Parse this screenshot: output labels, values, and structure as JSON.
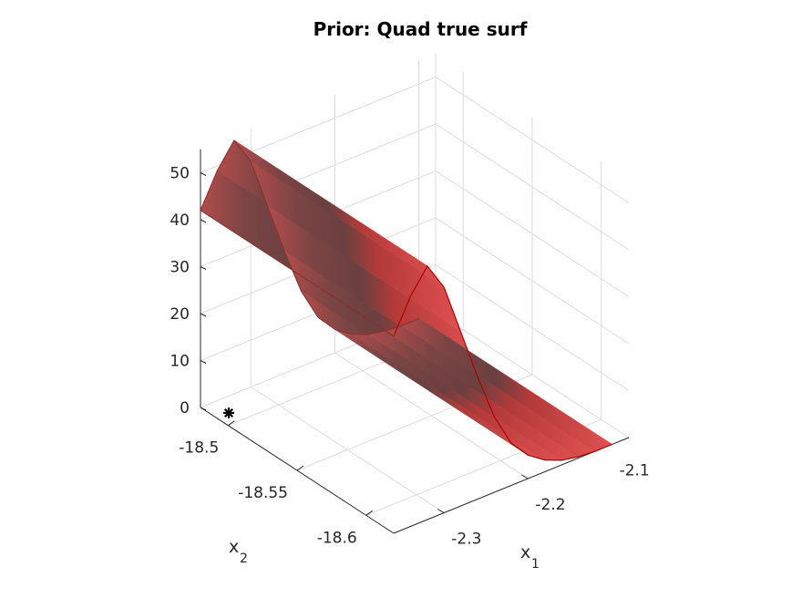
{
  "chart_data": {
    "type": "surface",
    "title": "Prior: Quad true surf",
    "xlabel": "x",
    "xlabel_subscript": "1",
    "ylabel": "x",
    "ylabel_subscript": "2",
    "zlabel": "",
    "xlim": [
      -2.36,
      -2.08
    ],
    "ylim": [
      -18.62,
      -18.48
    ],
    "zlim": [
      0,
      55
    ],
    "xticks": [
      -2.3,
      -2.2,
      -2.1
    ],
    "xtick_labels": [
      "-2.3",
      "-2.2",
      "-2.1"
    ],
    "yticks": [
      -18.5,
      -18.55,
      -18.6
    ],
    "ytick_labels": [
      "-18.5",
      "-18.55",
      "-18.6"
    ],
    "zticks": [
      0,
      10,
      20,
      30,
      40,
      50
    ],
    "ztick_labels": [
      "0",
      "10",
      "20",
      "30",
      "40",
      "50"
    ],
    "grid": true,
    "surface_color": "#d04a4a",
    "surface_edge_color": "#b00000",
    "surface_profile": [
      {
        "x": -2.36,
        "z": 42
      },
      {
        "x": -2.34,
        "z": 49
      },
      {
        "x": -2.32,
        "z": 54
      },
      {
        "x": -2.3,
        "z": 48
      },
      {
        "x": -2.28,
        "z": 37
      },
      {
        "x": -2.26,
        "z": 26
      },
      {
        "x": -2.24,
        "z": 16
      },
      {
        "x": -2.22,
        "z": 9
      },
      {
        "x": -2.2,
        "z": 5
      },
      {
        "x": -2.18,
        "z": 2.5
      },
      {
        "x": -2.16,
        "z": 1
      },
      {
        "x": -2.14,
        "z": 0.3
      },
      {
        "x": -2.12,
        "z": 0
      },
      {
        "x": -2.1,
        "z": 0
      }
    ],
    "marker": {
      "x": -2.36,
      "y": -18.48,
      "z": 0,
      "symbol": "asterisk",
      "color": "#000000"
    }
  }
}
